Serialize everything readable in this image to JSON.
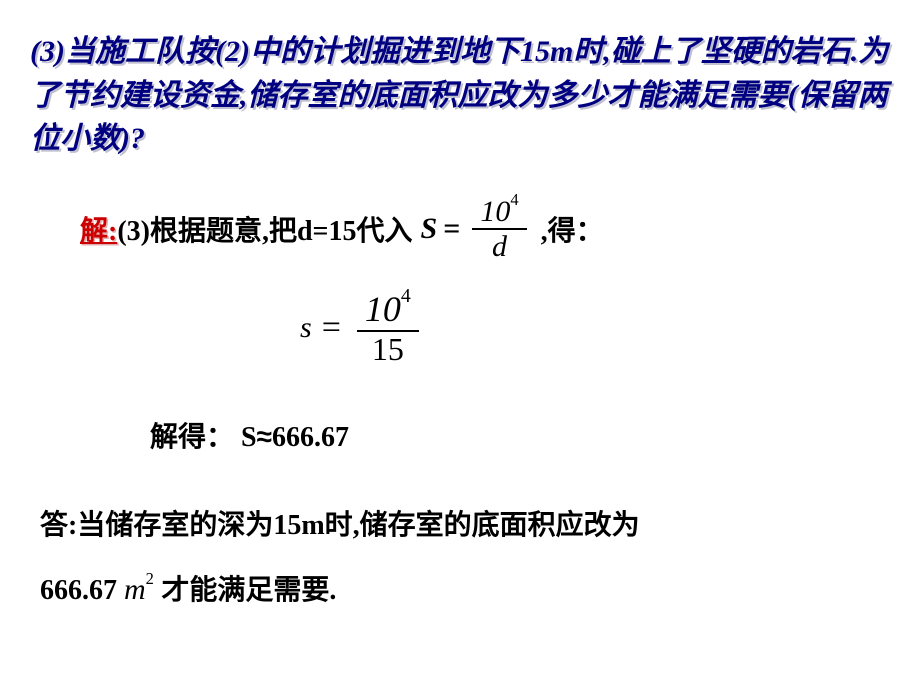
{
  "question": {
    "text": "(3)当施工队按(2)中的计划掘进到地下15m时,碰上了坚硬的岩石.为了节约建设资金,储存室的底面积应改为多少才能满足需要(保留两位小数)?",
    "color": "#000080",
    "shadow_color": "#c0c0d0",
    "fontsize": 30
  },
  "solution": {
    "label": "解:",
    "label_color": "#cc0000",
    "prefix": "(3)根据题意,把d=15代入",
    "suffix": " ,得：",
    "formula1": {
      "lhs": "S",
      "equals": "=",
      "num_base": "10",
      "num_exp": "4",
      "den": "d"
    }
  },
  "formula2": {
    "lhs": "s",
    "equals": "=",
    "num_base": "10",
    "num_exp": "4",
    "den": "15"
  },
  "result": {
    "prefix": "解得：   ",
    "var": "S",
    "approx": "≈",
    "value": "666.67"
  },
  "answer": {
    "line1": "答:当储存室的深为15m时,储存室的底面积应改为",
    "value": "666.67",
    "unit_base": "m",
    "unit_exp": "2",
    "line2_suffix": "才能满足需要."
  },
  "colors": {
    "background": "#ffffff",
    "text": "#000000"
  }
}
